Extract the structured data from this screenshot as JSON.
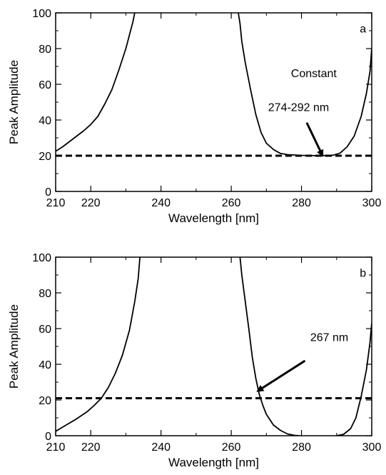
{
  "chart_data": [
    {
      "type": "line",
      "panel": "a",
      "xlabel": "Wavelength [nm]",
      "ylabel": "Peak Amplitude",
      "xlim": [
        210,
        300
      ],
      "ylim": [
        0,
        100
      ],
      "xticks": [
        210,
        220,
        240,
        260,
        280,
        300
      ],
      "xticks_minor": [
        230,
        250,
        270,
        290
      ],
      "yticks": [
        0,
        20,
        40,
        60,
        80,
        100
      ],
      "yticks_minor": [
        10,
        30,
        50,
        70,
        90
      ],
      "grid": false,
      "series": [
        {
          "style": "solid",
          "segments": [
            [
              [
                210,
                22.5
              ],
              [
                212,
                25
              ],
              [
                214,
                28
              ],
              [
                216,
                31
              ],
              [
                218,
                34
              ],
              [
                220,
                37.5
              ],
              [
                222,
                42
              ],
              [
                224,
                49
              ],
              [
                226,
                57
              ],
              [
                228,
                68
              ],
              [
                230,
                80
              ],
              [
                232,
                95
              ],
              [
                232.5,
                100
              ]
            ],
            [
              [
                262,
                100
              ],
              [
                262.5,
                94
              ],
              [
                263,
                84
              ],
              [
                264,
                72
              ],
              [
                265.5,
                57
              ],
              [
                267,
                43
              ],
              [
                268.5,
                33
              ],
              [
                270,
                27
              ],
              [
                272,
                23.5
              ],
              [
                274,
                21.3
              ],
              [
                276,
                20.6
              ],
              [
                280,
                20.2
              ],
              [
                285,
                20
              ],
              [
                289,
                20.3
              ],
              [
                291,
                21.5
              ],
              [
                293,
                25
              ],
              [
                295,
                31
              ],
              [
                297,
                42
              ],
              [
                298.5,
                55
              ],
              [
                299.5,
                67
              ],
              [
                300,
                80
              ]
            ]
          ]
        },
        {
          "style": "dashed",
          "segments": [
            [
              [
                210,
                20
              ],
              [
                300,
                20
              ]
            ]
          ]
        }
      ],
      "annotations": [
        {
          "text": "a",
          "x": 297.5,
          "y": 89
        },
        {
          "text": "Constant",
          "x": 277,
          "y": 64
        },
        {
          "text": "274-292 nm",
          "x": 270.5,
          "y": 45
        },
        {
          "type": "arrow",
          "from": [
            281.5,
            38.5
          ],
          "to": [
            286,
            20
          ]
        }
      ]
    },
    {
      "type": "line",
      "panel": "b",
      "xlabel": "Wavelength [nm]",
      "ylabel": "Peak Amplitude",
      "xlim": [
        210,
        300
      ],
      "ylim": [
        0,
        100
      ],
      "xticks": [
        210,
        220,
        240,
        260,
        280,
        300
      ],
      "xticks_minor": [
        230,
        250,
        270,
        290
      ],
      "yticks": [
        0,
        20,
        40,
        60,
        80,
        100
      ],
      "yticks_minor": [
        10,
        30,
        50,
        70,
        90
      ],
      "grid": false,
      "series": [
        {
          "style": "solid",
          "segments": [
            [
              [
                210,
                2.5
              ],
              [
                213,
                6
              ],
              [
                216,
                9.5
              ],
              [
                219,
                13.5
              ],
              [
                221,
                17
              ],
              [
                223,
                21
              ],
              [
                225,
                27
              ],
              [
                227,
                35
              ],
              [
                229,
                45
              ],
              [
                231,
                59
              ],
              [
                232.5,
                75
              ],
              [
                233.5,
                88
              ],
              [
                234,
                100
              ]
            ],
            [
              [
                262.5,
                100
              ],
              [
                263,
                90
              ],
              [
                264,
                75
              ],
              [
                265,
                60
              ],
              [
                266,
                44
              ],
              [
                267,
                32
              ],
              [
                268,
                23
              ],
              [
                269,
                17
              ],
              [
                270,
                12
              ],
              [
                272,
                6
              ],
              [
                274,
                3
              ],
              [
                276,
                1
              ],
              [
                278,
                0.2
              ],
              [
                279.5,
                0
              ]
            ],
            [
              [
                290,
                0
              ],
              [
                292,
                0.8
              ],
              [
                294,
                4
              ],
              [
                295.5,
                10
              ],
              [
                297,
                22
              ],
              [
                298.5,
                37
              ],
              [
                299.5,
                52
              ],
              [
                300,
                63
              ]
            ]
          ]
        },
        {
          "style": "dashed",
          "segments": [
            [
              [
                210,
                21
              ],
              [
                300,
                21
              ]
            ]
          ]
        }
      ],
      "annotations": [
        {
          "text": "b",
          "x": 297.5,
          "y": 89
        },
        {
          "text": "267 nm",
          "x": 282.5,
          "y": 53
        },
        {
          "type": "arrow",
          "from": [
            281,
            42
          ],
          "to": [
            267.5,
            25
          ]
        }
      ]
    }
  ]
}
